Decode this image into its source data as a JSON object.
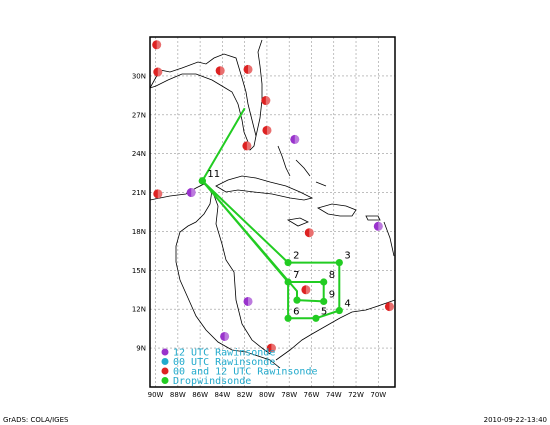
{
  "footer": {
    "left": "GrADS: COLA/IGES",
    "right": "2010-09-22-13:40"
  },
  "colors": {
    "track": "#22cc22",
    "dropsonde": "#22cc22",
    "raob_12": "#9933cc",
    "raob_00": "#22aacc",
    "raob_both": "#dd2222",
    "grid": "#999999",
    "coast": "#000000"
  },
  "axes": {
    "lon_ticks": [
      "90W",
      "88W",
      "86W",
      "84W",
      "82W",
      "80W",
      "78W",
      "76W",
      "74W",
      "72W",
      "70W"
    ],
    "lat_ticks": [
      "9N",
      "12N",
      "15N",
      "18N",
      "21N",
      "24N",
      "27N",
      "30N"
    ]
  },
  "legend": [
    {
      "label": "12 UTC Rawinsonde",
      "marker": "raob_12"
    },
    {
      "label": "00 UTC Rawinsonde",
      "marker": "raob_00"
    },
    {
      "label": "00 and 12 UTC Rawinsonde",
      "marker": "raob_both"
    },
    {
      "label": "Dropwindsonde",
      "marker": "dropsonde"
    }
  ],
  "waypoints": [
    {
      "label": "11",
      "lon": -85.8,
      "lat": 21.9
    },
    {
      "label": "2",
      "lon": -78.1,
      "lat": 15.6
    },
    {
      "label": "3",
      "lon": -73.5,
      "lat": 15.6
    },
    {
      "label": "7",
      "lon": -78.1,
      "lat": 14.1
    },
    {
      "label": "8",
      "lon": -74.9,
      "lat": 14.1
    },
    {
      "label": "9",
      "lon": -74.9,
      "lat": 12.6
    },
    {
      "label": "4",
      "lon": -73.5,
      "lat": 11.9
    },
    {
      "label": "5",
      "lon": -75.6,
      "lat": 11.3
    },
    {
      "label": "6",
      "lon": -78.1,
      "lat": 11.3
    }
  ],
  "extra_drops": [
    {
      "lon": -85.8,
      "lat": 21.9
    },
    {
      "lon": -77.3,
      "lat": 12.7
    }
  ],
  "track": [
    [
      -82.0,
      27.5
    ],
    [
      -85.8,
      21.9
    ],
    [
      -78.1,
      15.6
    ],
    [
      -73.5,
      15.6
    ],
    [
      -73.5,
      11.9
    ],
    [
      -75.6,
      11.3
    ],
    [
      -78.1,
      11.3
    ],
    [
      -78.1,
      14.1
    ],
    [
      -74.9,
      14.1
    ],
    [
      -74.9,
      12.6
    ],
    [
      -77.3,
      12.7
    ],
    [
      -77.3,
      13.4
    ],
    [
      -85.8,
      21.9
    ],
    [
      -78.1,
      14.1
    ]
  ],
  "raobs": [
    {
      "lon": -89.9,
      "lat": 32.4,
      "type": "raob_both"
    },
    {
      "lon": -89.8,
      "lat": 30.3,
      "type": "raob_both"
    },
    {
      "lon": -84.2,
      "lat": 30.4,
      "type": "raob_both"
    },
    {
      "lon": -81.7,
      "lat": 30.5,
      "type": "raob_both"
    },
    {
      "lon": -80.1,
      "lat": 28.1,
      "type": "raob_both"
    },
    {
      "lon": -80.0,
      "lat": 25.8,
      "type": "raob_both"
    },
    {
      "lon": -81.8,
      "lat": 24.6,
      "type": "raob_both"
    },
    {
      "lon": -77.5,
      "lat": 25.1,
      "type": "raob_12"
    },
    {
      "lon": -89.8,
      "lat": 20.9,
      "type": "raob_both"
    },
    {
      "lon": -86.8,
      "lat": 21.0,
      "type": "raob_12"
    },
    {
      "lon": -76.2,
      "lat": 17.9,
      "type": "raob_both"
    },
    {
      "lon": -70.0,
      "lat": 18.4,
      "type": "raob_12"
    },
    {
      "lon": -81.7,
      "lat": 12.6,
      "type": "raob_12"
    },
    {
      "lon": -83.8,
      "lat": 9.9,
      "type": "raob_12"
    },
    {
      "lon": -79.6,
      "lat": 9.0,
      "type": "raob_both"
    },
    {
      "lon": -69.0,
      "lat": 12.2,
      "type": "raob_both"
    },
    {
      "lon": -76.5,
      "lat": 13.5,
      "type": "raob_both"
    }
  ]
}
